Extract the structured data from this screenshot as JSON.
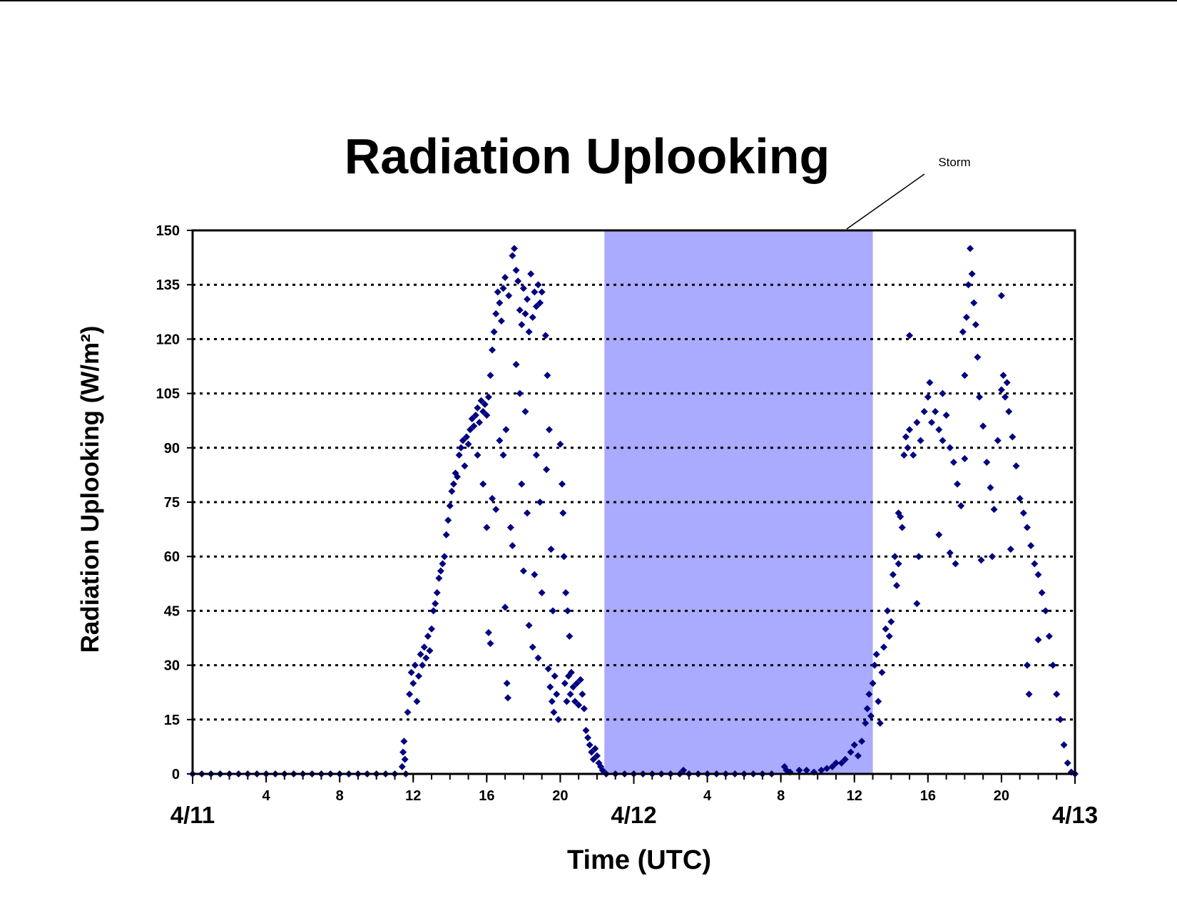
{
  "chart_data": {
    "type": "scatter",
    "title": "Radiation Uplooking",
    "y_label": "Radiation Uplooking (W/m²)",
    "x_label": "Time (UTC)",
    "color": "#000080",
    "xlim": [
      0,
      48
    ],
    "ylim": [
      0,
      150
    ],
    "yticks": [
      0,
      15,
      30,
      45,
      60,
      75,
      90,
      105,
      120,
      135,
      150
    ],
    "grid": true,
    "xticks": [
      4,
      8,
      12,
      16,
      20,
      {
        "value": 28,
        "label": "4"
      },
      {
        "value": 32,
        "label": "8"
      },
      {
        "value": 36,
        "label": "12"
      },
      {
        "value": 40,
        "label": "16"
      },
      {
        "value": 44,
        "label": "20"
      }
    ],
    "x_minor_ticks": [
      0,
      1,
      2,
      3,
      4,
      5,
      6,
      7,
      8,
      9,
      10,
      11,
      12,
      13,
      14,
      15,
      16,
      17,
      18,
      19,
      20,
      21,
      22,
      23,
      24,
      25,
      26,
      27,
      28,
      29,
      30,
      31,
      32,
      33,
      34,
      35,
      36,
      37,
      38,
      39,
      40,
      41,
      42,
      43,
      44,
      45,
      46,
      47,
      48
    ],
    "date_ticks": [
      {
        "value": 0,
        "label": "4/11"
      },
      {
        "value": 24,
        "label": "4/12"
      },
      {
        "value": 48,
        "label": "4/13"
      }
    ],
    "shaded_regions": [
      {
        "label": "Storm",
        "x": [
          22.4,
          37.0
        ],
        "color": "#aaaaff"
      }
    ],
    "x": [
      0,
      0.5,
      1,
      1.5,
      2,
      2.5,
      3,
      3.5,
      4,
      4.5,
      5,
      5.5,
      6,
      6.5,
      7,
      7.5,
      8,
      8.5,
      9,
      9.5,
      10,
      10.5,
      11,
      11.4,
      11.45,
      11.5,
      11.55,
      11.6,
      11.7,
      11.8,
      11.9,
      12.0,
      12.1,
      12.2,
      12.3,
      12.4,
      12.5,
      12.6,
      12.7,
      12.8,
      12.9,
      13.0,
      13.1,
      13.2,
      13.3,
      13.4,
      13.5,
      13.6,
      13.7,
      13.8,
      13.9,
      14.0,
      14.1,
      14.2,
      14.3,
      14.4,
      14.5,
      14.6,
      14.7,
      14.8,
      14.9,
      15.0,
      15.1,
      15.2,
      15.3,
      15.4,
      15.5,
      15.6,
      15.7,
      15.8,
      15.9,
      16.0,
      16.1,
      16.2,
      16.3,
      16.4,
      16.5,
      16.6,
      16.7,
      16.8,
      16.9,
      15.5,
      15.8,
      16.0,
      16.1,
      16.2,
      16.3,
      16.5,
      16.7,
      16.9,
      17.0,
      17.1,
      17.15,
      17.05,
      17.0,
      17.2,
      17.4,
      17.5,
      17.6,
      17.7,
      17.8,
      17.9,
      18.0,
      18.1,
      18.2,
      18.3,
      18.4,
      18.5,
      18.6,
      18.7,
      18.8,
      18.9,
      19.0,
      17.3,
      17.4,
      17.6,
      17.8,
      17.9,
      18.0,
      18.1,
      18.2,
      18.3,
      18.5,
      18.6,
      18.7,
      18.8,
      18.9,
      19.0,
      19.2,
      19.3,
      19.4,
      19.5,
      19.6,
      19.25,
      19.35,
      19.45,
      19.55,
      19.65,
      19.7,
      19.8,
      19.9,
      20.0,
      20.1,
      20.15,
      20.2,
      20.3,
      20.4,
      20.5,
      20.25,
      20.35,
      20.45,
      20.55,
      20.6,
      20.7,
      20.8,
      20.9,
      21.0,
      21.1,
      21.2,
      21.3,
      21.4,
      21.5,
      21.6,
      21.7,
      21.8,
      21.9,
      22.0,
      22.1,
      22.2,
      22.3,
      22.5,
      23.0,
      23.5,
      24,
      24.5,
      25,
      25.5,
      26,
      26.5,
      27,
      27.5,
      28,
      28.5,
      29,
      29.5,
      30,
      30.5,
      31,
      31.5,
      26.7,
      32.2,
      32.3,
      32.5,
      33.0,
      33.4,
      33.8,
      34.2,
      34.5,
      34.8,
      35.0,
      35.3,
      35.5,
      35.8,
      36.0,
      36.2,
      36.4,
      36.6,
      36.7,
      36.8,
      36.9,
      37.0,
      37.1,
      37.2,
      37.3,
      37.4,
      37.5,
      37.6,
      37.7,
      37.8,
      37.9,
      38.0,
      38.1,
      38.2,
      38.3,
      38.4,
      38.5,
      38.6,
      38.7,
      38.8,
      38.9,
      39.0,
      39.2,
      39.4,
      39.6,
      39.8,
      40.0,
      40.2,
      40.4,
      40.6,
      40.8,
      41.0,
      41.2,
      41.4,
      41.6,
      41.8,
      42.0,
      42.1,
      42.2,
      42.3,
      42.4,
      42.5,
      42.6,
      42.7,
      42.8,
      43.0,
      43.2,
      43.4,
      43.6,
      43.8,
      44.0,
      44.1,
      44.2,
      44.3,
      44.4,
      44.6,
      44.8,
      45.0,
      45.2,
      45.4,
      45.6,
      45.8,
      46.0,
      46.2,
      46.4,
      46.6,
      46.8,
      47.0,
      47.2,
      47.4,
      47.6,
      47.8,
      48.0,
      39.0,
      39.5,
      39.4,
      40.6,
      41.2,
      41.5,
      42.0,
      42.9,
      43.5,
      44.0,
      44.5,
      46.0,
      45.4,
      45.5,
      40.8,
      38.4,
      40.1,
      41.9
    ],
    "values": [
      0,
      0,
      0,
      0,
      0,
      0,
      0,
      0,
      0,
      0,
      0,
      0,
      0,
      0,
      0,
      0,
      0,
      0,
      0,
      0,
      0,
      0,
      0,
      2,
      6,
      9,
      4,
      0,
      17,
      22,
      28,
      25,
      30,
      20,
      27,
      33,
      30,
      35,
      32,
      38,
      34,
      40,
      45,
      47,
      50,
      54,
      56,
      58,
      60,
      66,
      70,
      74,
      78,
      80,
      83,
      82,
      88,
      90,
      92,
      85,
      93,
      91,
      95,
      98,
      96,
      99,
      101,
      97,
      103,
      100,
      102,
      99,
      104,
      110,
      117,
      122,
      127,
      133,
      130,
      125,
      134,
      88,
      80,
      68,
      39,
      36,
      76,
      73,
      92,
      88,
      46,
      25,
      21,
      95,
      137,
      132,
      143,
      145,
      139,
      136,
      128,
      124,
      134,
      127,
      131,
      122,
      138,
      126,
      133,
      129,
      135,
      130,
      133,
      68,
      63,
      113,
      105,
      80,
      56,
      100,
      72,
      41,
      35,
      55,
      88,
      32,
      75,
      50,
      121,
      110,
      95,
      62,
      45,
      84,
      29,
      24,
      20,
      17,
      27,
      22,
      15,
      91,
      80,
      72,
      60,
      50,
      45,
      38,
      25,
      20,
      27,
      22,
      28,
      24,
      20,
      25,
      19,
      26,
      22,
      18,
      12,
      10,
      8,
      6,
      4,
      7,
      5,
      3,
      2,
      1,
      0,
      0,
      0,
      0,
      0,
      0,
      0,
      0,
      0,
      0,
      0,
      0,
      0,
      0,
      0,
      0,
      0,
      0,
      0,
      1,
      2,
      1,
      0.5,
      1,
      1,
      0.5,
      1,
      1.5,
      2,
      3,
      3,
      4,
      6,
      8,
      5,
      9,
      14,
      18,
      22,
      16,
      25,
      30,
      33,
      20,
      14,
      28,
      35,
      40,
      45,
      38,
      42,
      55,
      60,
      52,
      58,
      71,
      68,
      88,
      93,
      90,
      95,
      88,
      97,
      92,
      100,
      104,
      97,
      100,
      95,
      92,
      99,
      90,
      86,
      80,
      74,
      110,
      126,
      135,
      145,
      138,
      130,
      124,
      115,
      104,
      96,
      86,
      79,
      73,
      92,
      106,
      110,
      104,
      108,
      100,
      93,
      85,
      76,
      72,
      68,
      63,
      58,
      55,
      50,
      45,
      38,
      30,
      22,
      15,
      8,
      3,
      0.5,
      0,
      121,
      60,
      47,
      66,
      61,
      58,
      87,
      59,
      60,
      132,
      62,
      37,
      30,
      22,
      105,
      72,
      108,
      122
    ]
  }
}
